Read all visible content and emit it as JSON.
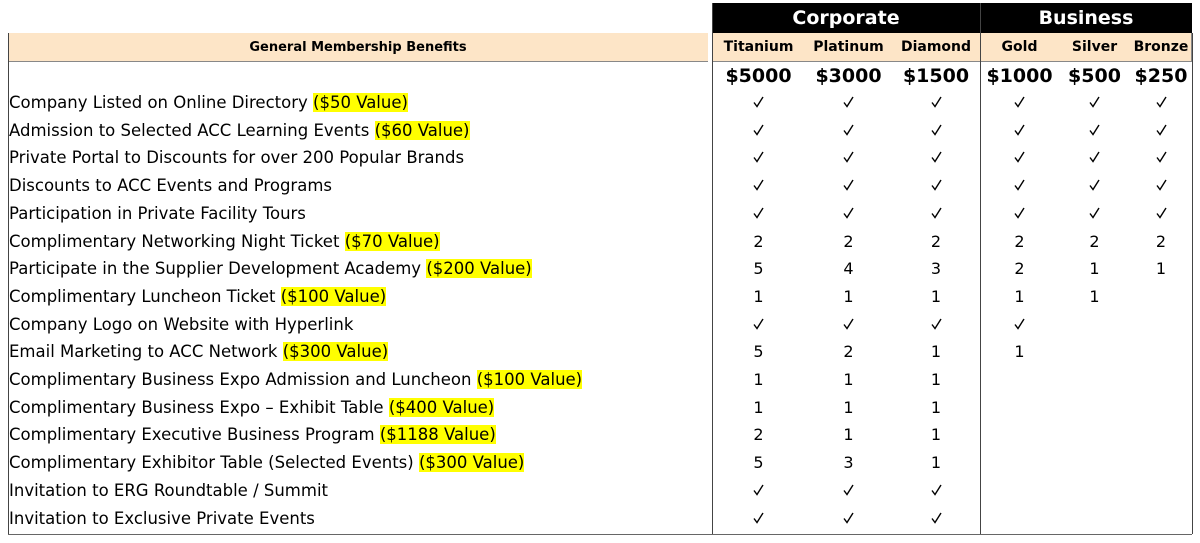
{
  "groups": {
    "corporate": "Corporate",
    "business": "Business"
  },
  "header": {
    "title": "General Membership Benefits"
  },
  "tiers": [
    {
      "name": "Titanium",
      "price": "$5000"
    },
    {
      "name": "Platinum",
      "price": "$3000"
    },
    {
      "name": "Diamond",
      "price": "$1500"
    },
    {
      "name": "Gold",
      "price": "$1000"
    },
    {
      "name": "Silver",
      "price": "$500"
    },
    {
      "name": "Bronze",
      "price": "$250"
    }
  ],
  "rows": [
    {
      "label": "Company Listed on Online Directory",
      "value": "($50 Value)",
      "cells": [
        "check",
        "check",
        "check",
        "check",
        "check",
        "check"
      ]
    },
    {
      "label": "Admission to Selected ACC Learning Events",
      "value": "($60 Value)",
      "cells": [
        "check",
        "check",
        "check",
        "check",
        "check",
        "check"
      ]
    },
    {
      "label": "Private Portal to Discounts for over 200 Popular Brands",
      "value": "",
      "cells": [
        "check",
        "check",
        "check",
        "check",
        "check",
        "check"
      ]
    },
    {
      "label": "Discounts to ACC Events and Programs",
      "value": "",
      "cells": [
        "check",
        "check",
        "check",
        "check",
        "check",
        "check"
      ]
    },
    {
      "label": "Participation in Private Facility Tours",
      "value": "",
      "cells": [
        "check",
        "check",
        "check",
        "check",
        "check",
        "check"
      ]
    },
    {
      "label": "Complimentary Networking Night Ticket",
      "value": "($70 Value)",
      "cells": [
        "2",
        "2",
        "2",
        "2",
        "2",
        "2"
      ]
    },
    {
      "label": "Participate in the Supplier Development Academy",
      "value": "($200 Value)",
      "cells": [
        "5",
        "4",
        "3",
        "2",
        "1",
        "1"
      ]
    },
    {
      "label": "Complimentary Luncheon Ticket",
      "value": "($100 Value)",
      "cells": [
        "1",
        "1",
        "1",
        "1",
        "1",
        ""
      ]
    },
    {
      "label": "Company Logo on Website with Hyperlink",
      "value": "",
      "cells": [
        "check",
        "check",
        "check",
        "check",
        "",
        ""
      ]
    },
    {
      "label": "Email Marketing to ACC Network",
      "value": "($300 Value)",
      "cells": [
        "5",
        "2",
        "1",
        "1",
        "",
        ""
      ]
    },
    {
      "label": "Complimentary Business Expo Admission and Luncheon",
      "value": "($100 Value)",
      "cells": [
        "1",
        "1",
        "1",
        "",
        "",
        ""
      ]
    },
    {
      "label": "Complimentary Business Expo – Exhibit Table",
      "value": "($400 Value)",
      "cells": [
        "1",
        "1",
        "1",
        "",
        "",
        ""
      ]
    },
    {
      "label": "Complimentary Executive Business Program",
      "value": "($1188 Value)",
      "cells": [
        "2",
        "1",
        "1",
        "",
        "",
        ""
      ]
    },
    {
      "label": "Complimentary Exhibitor Table (Selected Events)",
      "value": "($300 Value)",
      "cells": [
        "5",
        "3",
        "1",
        "",
        "",
        ""
      ]
    },
    {
      "label": "Invitation to ERG Roundtable / Summit",
      "value": "",
      "cells": [
        "check",
        "check",
        "check",
        "",
        "",
        ""
      ]
    },
    {
      "label": "Invitation to Exclusive Private Events",
      "value": "",
      "cells": [
        "check",
        "check",
        "check",
        "",
        "",
        ""
      ]
    }
  ]
}
